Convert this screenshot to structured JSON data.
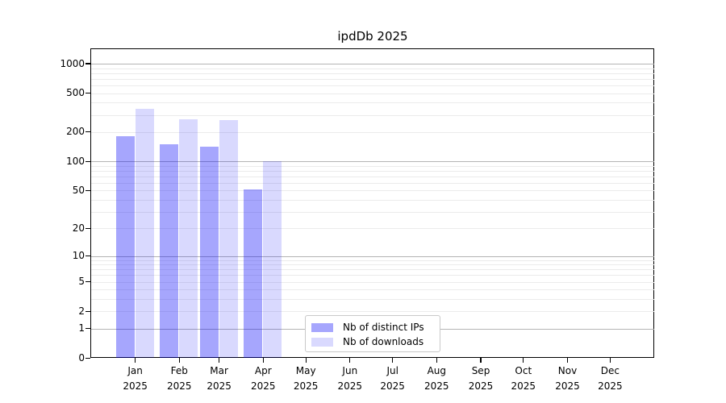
{
  "chart_data": {
    "type": "bar",
    "title": "ipdDb 2025",
    "year_label": "2025",
    "categories": [
      "Jan",
      "Feb",
      "Mar",
      "Apr",
      "May",
      "Jun",
      "Jul",
      "Aug",
      "Sep",
      "Oct",
      "Nov",
      "Dec"
    ],
    "series": [
      {
        "name": "Nb of distinct IPs",
        "color": "rgba(0,0,250,0.35)",
        "values": [
          182,
          149,
          142,
          51,
          null,
          null,
          null,
          null,
          null,
          null,
          null,
          null
        ]
      },
      {
        "name": "Nb of downloads",
        "color": "rgba(0,0,250,0.15)",
        "values": [
          343,
          273,
          263,
          100,
          null,
          null,
          null,
          null,
          null,
          null,
          null,
          null
        ]
      }
    ],
    "yaxis": {
      "scale": "log1p",
      "ticks": [
        0,
        1,
        2,
        5,
        10,
        20,
        50,
        100,
        200,
        500,
        1000
      ],
      "major_gridlines": [
        1,
        10,
        100,
        1000
      ],
      "top_log_value": 3.148
    },
    "xaxis": {
      "tick_anchor": "month-start",
      "months_shown": 12
    },
    "legend": {
      "position": "lower-center"
    },
    "grid": true,
    "colors": {
      "major_grid": "#b4b4b4",
      "minor_grid": "#ebebeb",
      "spine": "#000000"
    }
  }
}
